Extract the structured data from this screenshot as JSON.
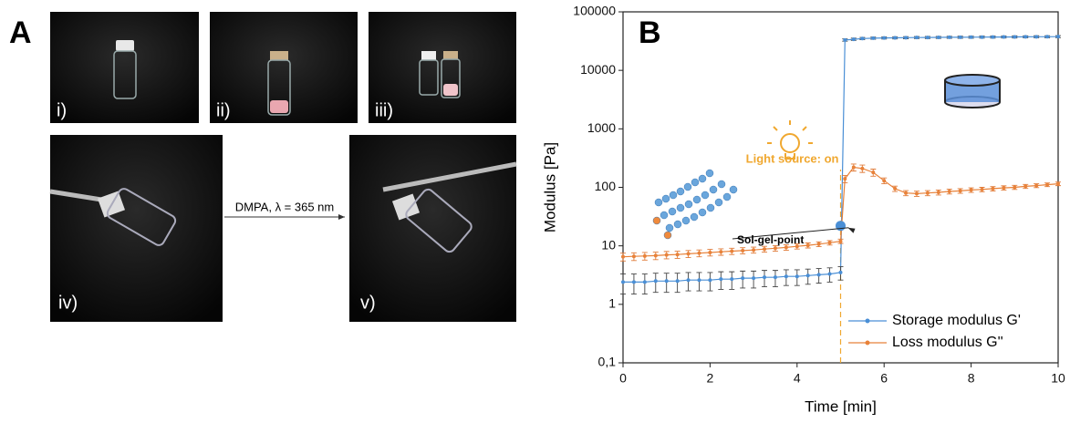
{
  "panel_a": {
    "label": "A",
    "photos": [
      "i)",
      "ii)",
      "iii)",
      "iv)",
      "v)"
    ],
    "arrow_text": "DMPA, λ = 365 nm"
  },
  "chart_data": {
    "type": "line",
    "panel_label": "B",
    "xlabel": "Time [min]",
    "ylabel": "Modulus [Pa]",
    "xlim": [
      0,
      10
    ],
    "xticks": [
      0,
      2,
      4,
      6,
      8,
      10
    ],
    "ylim": [
      0.1,
      100000
    ],
    "log_y": true,
    "yticks": [
      {
        "value": 0.1,
        "label": "0,1"
      },
      1,
      10,
      100,
      1000,
      10000,
      100000
    ],
    "grid": false,
    "legend": "lower right",
    "x": [
      0,
      0.25,
      0.5,
      0.75,
      1,
      1.25,
      1.5,
      1.75,
      2,
      2.25,
      2.5,
      2.75,
      3,
      3.25,
      3.5,
      3.75,
      4,
      4.25,
      4.5,
      4.75,
      5,
      5.1,
      5.3,
      5.5,
      5.75,
      6,
      6.25,
      6.5,
      6.75,
      7,
      7.25,
      7.5,
      7.75,
      8,
      8.25,
      8.5,
      8.75,
      9,
      9.25,
      9.5,
      9.75,
      10
    ],
    "series": [
      {
        "name": "Storage modulus G'",
        "color": "#4a8fd6",
        "error_color": "#444444",
        "values": [
          2.4,
          2.4,
          2.4,
          2.5,
          2.5,
          2.5,
          2.6,
          2.6,
          2.6,
          2.7,
          2.7,
          2.8,
          2.8,
          2.9,
          2.9,
          3.0,
          3.0,
          3.1,
          3.2,
          3.3,
          3.5,
          33000,
          34000,
          35000,
          35500,
          35800,
          36000,
          36200,
          36400,
          36500,
          36600,
          36700,
          36800,
          36900,
          37000,
          37100,
          37200,
          37300,
          37400,
          37500,
          37600,
          37700
        ],
        "errors": [
          0.9,
          0.9,
          0.9,
          0.9,
          0.9,
          0.9,
          0.9,
          0.9,
          0.9,
          0.9,
          0.9,
          0.9,
          0.9,
          0.9,
          0.9,
          0.9,
          0.9,
          0.9,
          0.9,
          0.9,
          0.9,
          1500,
          1500,
          1500,
          1500,
          1500,
          1500,
          1500,
          1500,
          1500,
          1500,
          1500,
          1500,
          1500,
          1500,
          1500,
          1500,
          1500,
          1500,
          1500,
          1500,
          1500
        ]
      },
      {
        "name": "Loss modulus G''",
        "color": "#e8823a",
        "error_color": "#e07b39",
        "values": [
          6.5,
          6.6,
          6.7,
          6.8,
          7.0,
          7.1,
          7.3,
          7.5,
          7.7,
          7.9,
          8.1,
          8.3,
          8.5,
          8.8,
          9.1,
          9.4,
          9.8,
          10.2,
          10.7,
          11.3,
          12,
          140,
          220,
          210,
          180,
          130,
          95,
          80,
          78,
          80,
          82,
          85,
          87,
          90,
          92,
          95,
          98,
          100,
          104,
          107,
          111,
          115
        ],
        "errors": [
          1,
          1,
          1,
          1,
          1,
          1,
          1,
          1,
          1,
          1,
          1,
          1,
          1,
          1,
          1,
          1,
          1,
          1,
          1,
          1,
          1,
          20,
          30,
          30,
          25,
          15,
          10,
          8,
          8,
          8,
          8,
          8,
          8,
          8,
          8,
          8,
          8,
          8,
          8,
          8,
          8,
          8
        ]
      }
    ],
    "annotations": [
      {
        "text": "Light source: on",
        "x": 5,
        "color": "#f0a830"
      }
    ],
    "marker": {
      "text": "Sol-gel-point",
      "x": 5,
      "y": 22,
      "color": "#4a8fd6"
    }
  }
}
